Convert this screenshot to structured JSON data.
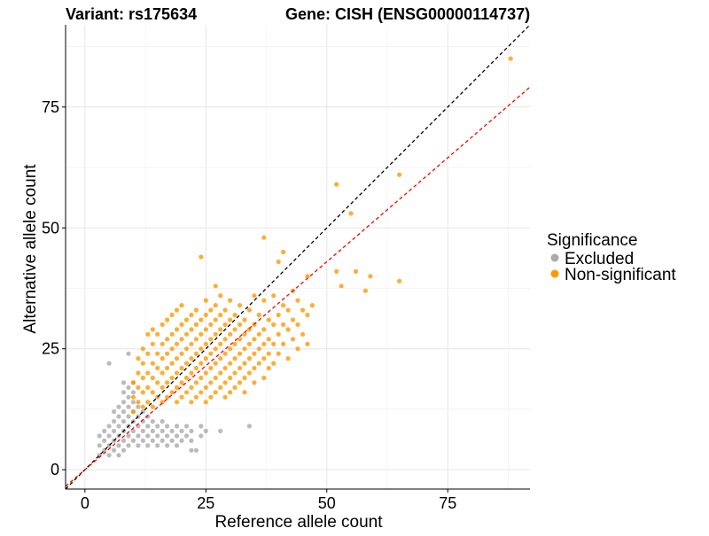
{
  "chart_data": {
    "type": "scatter",
    "title_variant": "Variant: rs175634",
    "title_gene": "Gene: CISH (ENSG00000114737)",
    "xlabel": "Reference allele count",
    "ylabel": "Alternative allele count",
    "xlim": [
      -4,
      92
    ],
    "ylim": [
      -4,
      92
    ],
    "x_ticks": [
      0,
      25,
      50,
      75
    ],
    "y_ticks": [
      0,
      25,
      50,
      75
    ],
    "grid": true,
    "legend": {
      "title": "Significance",
      "position": "right",
      "entries": [
        {
          "label": "Excluded",
          "color": "#AAAAAA"
        },
        {
          "label": "Non-significant",
          "color": "#FF9900"
        }
      ]
    },
    "reference_lines": [
      {
        "name": "identity",
        "slope": 1.0,
        "intercept": 0,
        "color": "#000000",
        "style": "dashed"
      },
      {
        "name": "fit",
        "slope": 0.86,
        "intercept": 0,
        "color": "#FF0000",
        "style": "dashed"
      }
    ],
    "series": [
      {
        "name": "Excluded",
        "color": "#AAAAAA",
        "points": [
          [
            3,
            3
          ],
          [
            3,
            5
          ],
          [
            3,
            7
          ],
          [
            4,
            4
          ],
          [
            4,
            6
          ],
          [
            4,
            8
          ],
          [
            5,
            3
          ],
          [
            5,
            5
          ],
          [
            5,
            7
          ],
          [
            5,
            9
          ],
          [
            5,
            22
          ],
          [
            6,
            4
          ],
          [
            6,
            6
          ],
          [
            6,
            8
          ],
          [
            6,
            10
          ],
          [
            6,
            12
          ],
          [
            7,
            3
          ],
          [
            7,
            5
          ],
          [
            7,
            7
          ],
          [
            7,
            9
          ],
          [
            7,
            11
          ],
          [
            7,
            13
          ],
          [
            8,
            4
          ],
          [
            8,
            6
          ],
          [
            8,
            8
          ],
          [
            8,
            10
          ],
          [
            8,
            12
          ],
          [
            8,
            14
          ],
          [
            8,
            16
          ],
          [
            8,
            18
          ],
          [
            9,
            5
          ],
          [
            9,
            7
          ],
          [
            9,
            9
          ],
          [
            9,
            11
          ],
          [
            9,
            13
          ],
          [
            9,
            15
          ],
          [
            9,
            17
          ],
          [
            9,
            24
          ],
          [
            10,
            6
          ],
          [
            10,
            8
          ],
          [
            10,
            10
          ],
          [
            10,
            12
          ],
          [
            10,
            14
          ],
          [
            10,
            16
          ],
          [
            10,
            18
          ],
          [
            11,
            5
          ],
          [
            11,
            7
          ],
          [
            11,
            9
          ],
          [
            11,
            11
          ],
          [
            11,
            13
          ],
          [
            12,
            6
          ],
          [
            12,
            8
          ],
          [
            12,
            10
          ],
          [
            12,
            12
          ],
          [
            13,
            5
          ],
          [
            13,
            7
          ],
          [
            13,
            9
          ],
          [
            13,
            11
          ],
          [
            14,
            6
          ],
          [
            14,
            8
          ],
          [
            14,
            10
          ],
          [
            15,
            5
          ],
          [
            15,
            7
          ],
          [
            15,
            9
          ],
          [
            16,
            6
          ],
          [
            16,
            8
          ],
          [
            16,
            10
          ],
          [
            17,
            5
          ],
          [
            17,
            7
          ],
          [
            17,
            9
          ],
          [
            18,
            6
          ],
          [
            18,
            8
          ],
          [
            19,
            5
          ],
          [
            19,
            7
          ],
          [
            19,
            9
          ],
          [
            20,
            6
          ],
          [
            20,
            8
          ],
          [
            21,
            7
          ],
          [
            21,
            9
          ],
          [
            22,
            4
          ],
          [
            22,
            6
          ],
          [
            22,
            8
          ],
          [
            23,
            4
          ],
          [
            24,
            7
          ],
          [
            24,
            9
          ],
          [
            25,
            8
          ],
          [
            28,
            8
          ],
          [
            34,
            9
          ]
        ]
      },
      {
        "name": "Non-significant",
        "color": "#FF9900",
        "points": [
          [
            10,
            12
          ],
          [
            10,
            15
          ],
          [
            10,
            18
          ],
          [
            11,
            14
          ],
          [
            11,
            17
          ],
          [
            11,
            20
          ],
          [
            11,
            23
          ],
          [
            12,
            13
          ],
          [
            12,
            16
          ],
          [
            12,
            19
          ],
          [
            12,
            22
          ],
          [
            12,
            25
          ],
          [
            13,
            14
          ],
          [
            13,
            17
          ],
          [
            13,
            20
          ],
          [
            13,
            24
          ],
          [
            13,
            28
          ],
          [
            14,
            13
          ],
          [
            14,
            16
          ],
          [
            14,
            19
          ],
          [
            14,
            22
          ],
          [
            14,
            26
          ],
          [
            14,
            29
          ],
          [
            15,
            15
          ],
          [
            15,
            18
          ],
          [
            15,
            21
          ],
          [
            15,
            24
          ],
          [
            15,
            28
          ],
          [
            16,
            14
          ],
          [
            16,
            17
          ],
          [
            16,
            20
          ],
          [
            16,
            23
          ],
          [
            16,
            26
          ],
          [
            16,
            30
          ],
          [
            17,
            15
          ],
          [
            17,
            18
          ],
          [
            17,
            21
          ],
          [
            17,
            24
          ],
          [
            17,
            27
          ],
          [
            17,
            31
          ],
          [
            18,
            16
          ],
          [
            18,
            19
          ],
          [
            18,
            22
          ],
          [
            18,
            25
          ],
          [
            18,
            28
          ],
          [
            18,
            32
          ],
          [
            19,
            14
          ],
          [
            19,
            17
          ],
          [
            19,
            20
          ],
          [
            19,
            23
          ],
          [
            19,
            26
          ],
          [
            19,
            29
          ],
          [
            19,
            33
          ],
          [
            20,
            15
          ],
          [
            20,
            18
          ],
          [
            20,
            21
          ],
          [
            20,
            24
          ],
          [
            20,
            27
          ],
          [
            20,
            30
          ],
          [
            20,
            34
          ],
          [
            21,
            16
          ],
          [
            21,
            19
          ],
          [
            21,
            22
          ],
          [
            21,
            25
          ],
          [
            21,
            28
          ],
          [
            21,
            31
          ],
          [
            22,
            14
          ],
          [
            22,
            17
          ],
          [
            22,
            20
          ],
          [
            22,
            23
          ],
          [
            22,
            26
          ],
          [
            22,
            29
          ],
          [
            22,
            32
          ],
          [
            23,
            15
          ],
          [
            23,
            18
          ],
          [
            23,
            21
          ],
          [
            23,
            24
          ],
          [
            23,
            27
          ],
          [
            23,
            30
          ],
          [
            23,
            33
          ],
          [
            24,
            16
          ],
          [
            24,
            19
          ],
          [
            24,
            22
          ],
          [
            24,
            25
          ],
          [
            24,
            28
          ],
          [
            24,
            31
          ],
          [
            24,
            44
          ],
          [
            25,
            14
          ],
          [
            25,
            17
          ],
          [
            25,
            20
          ],
          [
            25,
            23
          ],
          [
            25,
            26
          ],
          [
            25,
            29
          ],
          [
            25,
            32
          ],
          [
            25,
            35
          ],
          [
            26,
            15
          ],
          [
            26,
            18
          ],
          [
            26,
            21
          ],
          [
            26,
            24
          ],
          [
            26,
            27
          ],
          [
            26,
            30
          ],
          [
            26,
            33
          ],
          [
            27,
            16
          ],
          [
            27,
            19
          ],
          [
            27,
            22
          ],
          [
            27,
            25
          ],
          [
            27,
            28
          ],
          [
            27,
            31
          ],
          [
            27,
            34
          ],
          [
            27,
            38
          ],
          [
            28,
            17
          ],
          [
            28,
            20
          ],
          [
            28,
            23
          ],
          [
            28,
            26
          ],
          [
            28,
            29
          ],
          [
            28,
            32
          ],
          [
            28,
            36
          ],
          [
            29,
            15
          ],
          [
            29,
            18
          ],
          [
            29,
            21
          ],
          [
            29,
            24
          ],
          [
            29,
            27
          ],
          [
            29,
            30
          ],
          [
            29,
            33
          ],
          [
            30,
            16
          ],
          [
            30,
            19
          ],
          [
            30,
            22
          ],
          [
            30,
            25
          ],
          [
            30,
            28
          ],
          [
            30,
            31
          ],
          [
            30,
            35
          ],
          [
            31,
            17
          ],
          [
            31,
            20
          ],
          [
            31,
            23
          ],
          [
            31,
            26
          ],
          [
            31,
            29
          ],
          [
            31,
            32
          ],
          [
            32,
            18
          ],
          [
            32,
            21
          ],
          [
            32,
            24
          ],
          [
            32,
            27
          ],
          [
            32,
            30
          ],
          [
            32,
            34
          ],
          [
            33,
            16
          ],
          [
            33,
            19
          ],
          [
            33,
            22
          ],
          [
            33,
            25
          ],
          [
            33,
            28
          ],
          [
            33,
            31
          ],
          [
            34,
            20
          ],
          [
            34,
            23
          ],
          [
            34,
            26
          ],
          [
            34,
            29
          ],
          [
            34,
            33
          ],
          [
            35,
            18
          ],
          [
            35,
            21
          ],
          [
            35,
            24
          ],
          [
            35,
            27
          ],
          [
            35,
            30
          ],
          [
            35,
            36
          ],
          [
            36,
            22
          ],
          [
            36,
            25
          ],
          [
            36,
            28
          ],
          [
            36,
            32
          ],
          [
            37,
            19
          ],
          [
            37,
            23
          ],
          [
            37,
            26
          ],
          [
            37,
            29
          ],
          [
            37,
            35
          ],
          [
            37,
            48
          ],
          [
            38,
            21
          ],
          [
            38,
            24
          ],
          [
            38,
            27
          ],
          [
            38,
            31
          ],
          [
            39,
            22
          ],
          [
            39,
            26
          ],
          [
            39,
            30
          ],
          [
            39,
            36
          ],
          [
            40,
            24
          ],
          [
            40,
            28
          ],
          [
            40,
            32
          ],
          [
            40,
            43
          ],
          [
            41,
            26
          ],
          [
            41,
            30
          ],
          [
            41,
            34
          ],
          [
            41,
            45
          ],
          [
            42,
            23
          ],
          [
            42,
            29
          ],
          [
            42,
            33
          ],
          [
            43,
            27
          ],
          [
            43,
            31
          ],
          [
            43,
            37
          ],
          [
            44,
            25
          ],
          [
            44,
            30
          ],
          [
            44,
            35
          ],
          [
            45,
            28
          ],
          [
            45,
            33
          ],
          [
            46,
            26
          ],
          [
            46,
            32
          ],
          [
            46,
            40
          ],
          [
            47,
            34
          ],
          [
            52,
            59
          ],
          [
            52,
            41
          ],
          [
            53,
            38
          ],
          [
            55,
            53
          ],
          [
            56,
            41
          ],
          [
            58,
            37
          ],
          [
            59,
            40
          ],
          [
            65,
            61
          ],
          [
            65,
            39
          ],
          [
            88,
            85
          ]
        ]
      }
    ]
  }
}
